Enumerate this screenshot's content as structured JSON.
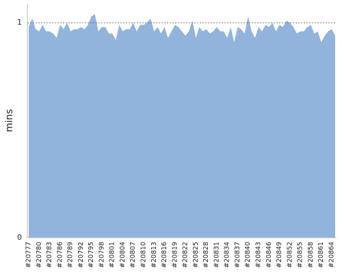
{
  "chart_data": {
    "type": "area",
    "y_label": "mins",
    "color": "#92b4dc",
    "categories": [
      "#20777",
      null,
      null,
      "#20780",
      null,
      null,
      "#20783",
      null,
      null,
      "#20786",
      null,
      null,
      "#20789",
      null,
      null,
      "#20792",
      null,
      null,
      "#20795",
      null,
      null,
      "#20798",
      null,
      null,
      "#20801",
      null,
      null,
      "#20804",
      null,
      null,
      "#20807",
      null,
      null,
      "#20810",
      null,
      null,
      "#20813",
      null,
      null,
      "#20816",
      null,
      null,
      "#20819",
      null,
      null,
      "#20822",
      null,
      null,
      "#20825",
      null,
      null,
      "#20828",
      null,
      null,
      "#20831",
      null,
      null,
      "#20834",
      null,
      null,
      "#20837",
      null,
      null,
      "#20840",
      null,
      null,
      "#20843",
      null,
      null,
      "#20846",
      null,
      null,
      "#20849",
      null,
      null,
      "#20852",
      null,
      null,
      "#20855",
      null,
      null,
      "#20858",
      null,
      null,
      "#20861",
      null,
      null,
      "#20864",
      null
    ],
    "values": [
      0.98,
      1.02,
      0.97,
      0.96,
      0.99,
      0.96,
      0.96,
      0.95,
      0.93,
      0.99,
      0.97,
      1.0,
      0.96,
      0.97,
      0.97,
      0.98,
      0.97,
      0.99,
      1.03,
      1.04,
      0.96,
      0.98,
      0.98,
      0.95,
      0.95,
      0.92,
      0.99,
      0.96,
      0.97,
      0.97,
      1.0,
      0.96,
      0.99,
      0.99,
      1.0,
      1.02,
      0.96,
      0.98,
      0.95,
      0.98,
      0.93,
      0.96,
      0.99,
      0.98,
      0.96,
      0.94,
      0.96,
      1.01,
      0.93,
      0.98,
      0.96,
      0.97,
      0.95,
      0.96,
      0.98,
      0.96,
      0.96,
      0.93,
      0.98,
      0.91,
      0.98,
      0.97,
      0.95,
      1.03,
      0.96,
      0.93,
      0.98,
      0.96,
      0.99,
      0.98,
      1.0,
      0.96,
      0.99,
      0.98,
      1.01,
      1.0,
      0.98,
      0.95,
      0.96,
      0.96,
      0.98,
      0.99,
      0.95,
      0.96,
      0.91,
      0.94,
      0.96,
      0.97,
      0.94
    ],
    "ylim": [
      0,
      1.09
    ],
    "yticks": [
      0,
      1
    ],
    "grid": true
  }
}
